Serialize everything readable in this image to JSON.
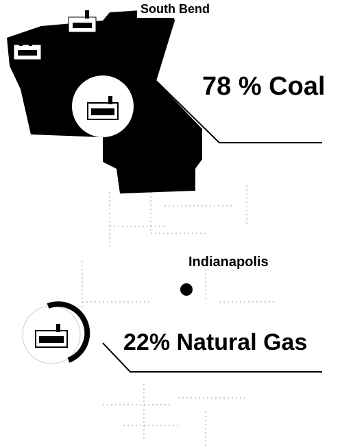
{
  "labels": {
    "city_north": "South Bend",
    "coal": "78 % Coal",
    "city_center": "Indianapolis",
    "gas": "22% Natural Gas"
  }
}
